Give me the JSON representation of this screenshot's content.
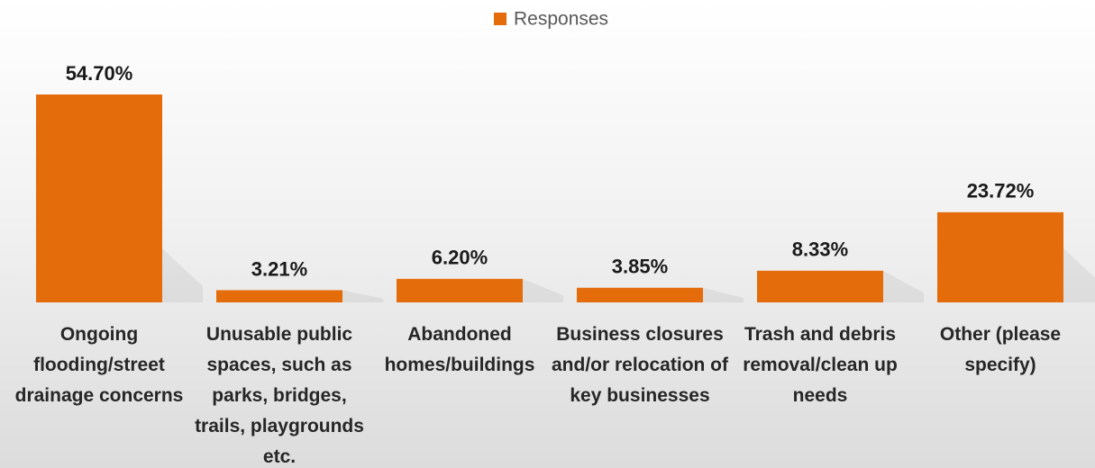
{
  "chart_data": {
    "type": "bar",
    "categories": [
      "Ongoing flooding/street drainage concerns",
      "Unusable public spaces, such as parks, bridges, trails, playgrounds etc.",
      "Abandoned homes/buildings",
      "Business closures and/or relocation of key businesses",
      "Trash and debris removal/clean up needs",
      "Other (please specify)"
    ],
    "series": [
      {
        "name": "Responses",
        "color": "#e46c0a",
        "values": [
          54.7,
          3.21,
          6.2,
          3.85,
          8.33,
          23.72
        ],
        "value_labels": [
          "54.70%",
          "3.21%",
          "6.20%",
          "3.85%",
          "8.33%",
          "23.72%"
        ]
      }
    ],
    "legend": "top"
  }
}
